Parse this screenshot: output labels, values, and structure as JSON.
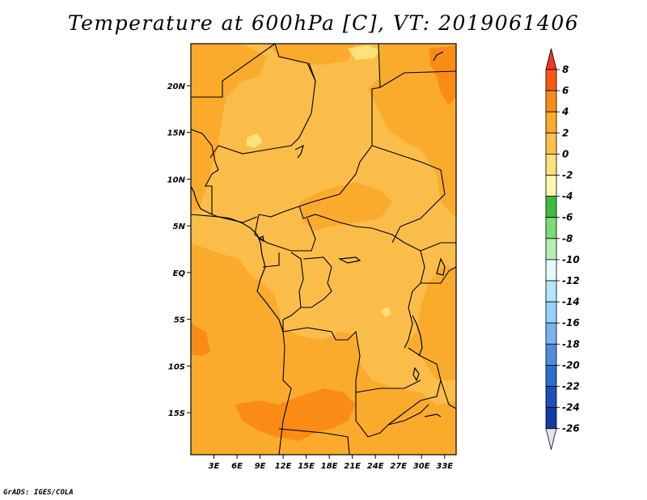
{
  "title": "Temperature at 600hPa [C], VT: 2019061406",
  "credit": "GrADS: IGES/COLA",
  "map": {
    "lon_range": [
      0,
      34.5
    ],
    "lat_range": [
      -19.5,
      24.5
    ],
    "lat_ticks": [
      {
        "value": 20,
        "label": "20N"
      },
      {
        "value": 15,
        "label": "15N"
      },
      {
        "value": 10,
        "label": "10N"
      },
      {
        "value": 5,
        "label": "5N"
      },
      {
        "value": 0,
        "label": "EQ"
      },
      {
        "value": -5,
        "label": "5S"
      },
      {
        "value": -10,
        "label": "10S"
      },
      {
        "value": -15,
        "label": "15S"
      }
    ],
    "lon_ticks": [
      {
        "value": 3,
        "label": "3E"
      },
      {
        "value": 6,
        "label": "6E"
      },
      {
        "value": 9,
        "label": "9E"
      },
      {
        "value": 12,
        "label": "12E"
      },
      {
        "value": 15,
        "label": "15E"
      },
      {
        "value": 18,
        "label": "18E"
      },
      {
        "value": 21,
        "label": "21E"
      },
      {
        "value": 24,
        "label": "24E"
      },
      {
        "value": 27,
        "label": "27E"
      },
      {
        "value": 30,
        "label": "30E"
      },
      {
        "value": 33,
        "label": "33E"
      }
    ]
  },
  "colorbar": {
    "labels": [
      "8",
      "6",
      "4",
      "2",
      "0",
      "-2",
      "-4",
      "-6",
      "-8",
      "-10",
      "-12",
      "-14",
      "-16",
      "-18",
      "-20",
      "-22",
      "-24",
      "-26"
    ],
    "colors": [
      "#f0361e",
      "#fa5a0f",
      "#fa8c16",
      "#fbaa2a",
      "#fbc050",
      "#fde17a",
      "#fdf7b0",
      "#3cbe3c",
      "#78dc78",
      "#b4f0b4",
      "#e6fafa",
      "#b4e6fa",
      "#96d2fa",
      "#78b4f0",
      "#508cdc",
      "#2e6ecb",
      "#1e50b4",
      "#143ca0",
      "#0a0a6e",
      "#e1e1f0"
    ]
  },
  "legend_colors": {
    "band_2_4": "#fbaa2a",
    "band_0_2": "#fbc050",
    "band_m2_0": "#fde17a",
    "band_4_6": "#fa8c16",
    "band_6_8": "#fa5a0f"
  }
}
